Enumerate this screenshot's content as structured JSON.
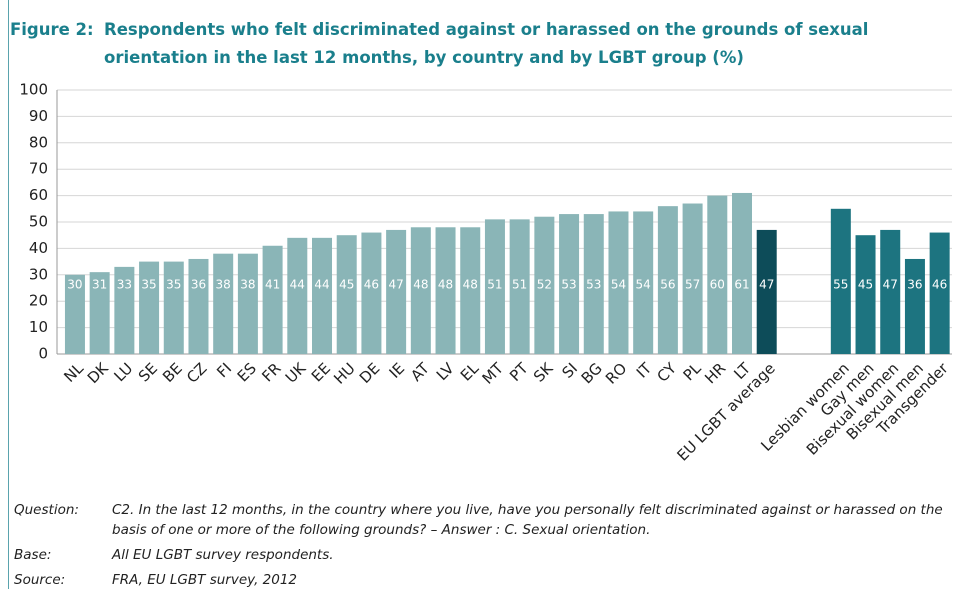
{
  "figure_label": "Figure 2:",
  "chart_data": {
    "type": "bar",
    "title": "Respondents who felt discriminated against or harassed on the grounds of sexual orientation in the last 12 months, by country and by LGBT group (%)",
    "categories": [
      "NL",
      "DK",
      "LU",
      "SE",
      "BE",
      "CZ",
      "FI",
      "ES",
      "FR",
      "UK",
      "EE",
      "HU",
      "DE",
      "IE",
      "AT",
      "LV",
      "EL",
      "MT",
      "PT",
      "SK",
      "SI",
      "BG",
      "RO",
      "IT",
      "CY",
      "PL",
      "HR",
      "LT",
      "EU LGBT average",
      null,
      null,
      "Lesbian women",
      "Gay men",
      "Bisexual women",
      "Bisexual men",
      "Transgender"
    ],
    "values": [
      30,
      31,
      33,
      35,
      35,
      36,
      38,
      38,
      41,
      44,
      44,
      45,
      46,
      47,
      48,
      48,
      48,
      51,
      51,
      52,
      53,
      53,
      54,
      54,
      56,
      57,
      60,
      61,
      47,
      null,
      null,
      55,
      45,
      47,
      36,
      46
    ],
    "colors": [
      "#8ab5b7",
      "#8ab5b7",
      "#8ab5b7",
      "#8ab5b7",
      "#8ab5b7",
      "#8ab5b7",
      "#8ab5b7",
      "#8ab5b7",
      "#8ab5b7",
      "#8ab5b7",
      "#8ab5b7",
      "#8ab5b7",
      "#8ab5b7",
      "#8ab5b7",
      "#8ab5b7",
      "#8ab5b7",
      "#8ab5b7",
      "#8ab5b7",
      "#8ab5b7",
      "#8ab5b7",
      "#8ab5b7",
      "#8ab5b7",
      "#8ab5b7",
      "#8ab5b7",
      "#8ab5b7",
      "#8ab5b7",
      "#8ab5b7",
      "#8ab5b7",
      "#0d4c59",
      null,
      null,
      "#1d7480",
      "#1d7480",
      "#1d7480",
      "#1d7480",
      "#1d7480"
    ],
    "ylim": [
      0,
      100
    ],
    "yticks": [
      0,
      10,
      20,
      30,
      40,
      50,
      60,
      70,
      80,
      90,
      100
    ],
    "grid": true
  },
  "notes": [
    {
      "label": "Question:",
      "text": "C2. In the last 12 months, in the country where you live, have you personally felt discriminated against or harassed on the basis of one or more of the following grounds? – Answer : C. Sexual orientation."
    },
    {
      "label": "Base:",
      "text": "All EU LGBT survey respondents."
    },
    {
      "label": "Source:",
      "text": "FRA, EU LGBT survey, 2012"
    }
  ]
}
